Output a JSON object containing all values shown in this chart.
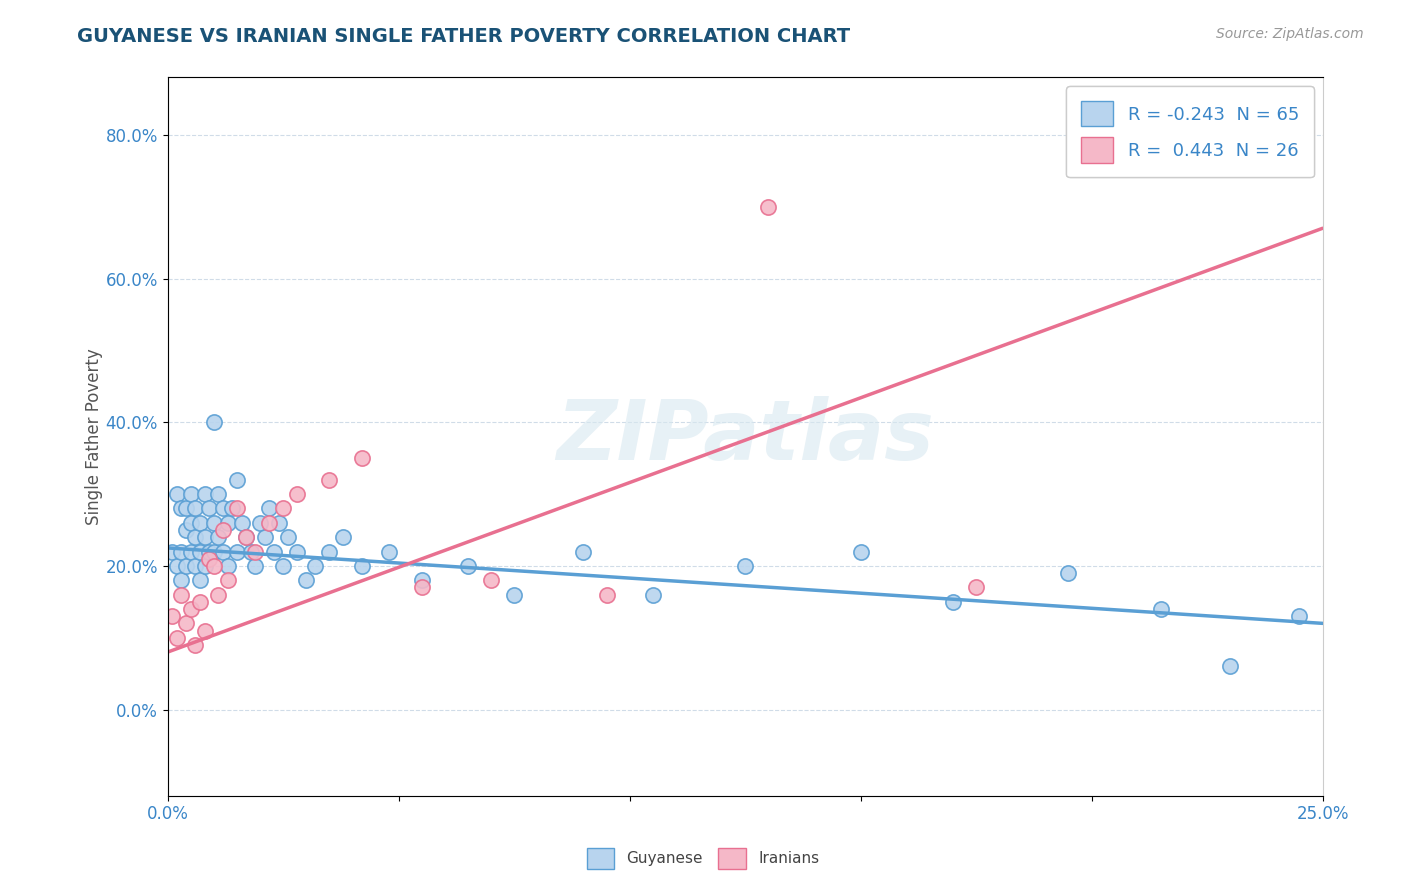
{
  "title": "GUYANESE VS IRANIAN SINGLE FATHER POVERTY CORRELATION CHART",
  "source": "Source: ZipAtlas.com",
  "ylabel": "Single Father Poverty",
  "ytick_vals": [
    0.0,
    0.2,
    0.4,
    0.6,
    0.8
  ],
  "ytick_labels": [
    "0.0%",
    "20.0%",
    "40.0%",
    "60.0%",
    "80.0%"
  ],
  "xlim": [
    0.0,
    0.25
  ],
  "ylim": [
    -0.12,
    0.88
  ],
  "watermark": "ZIPatlas",
  "legend_entries": [
    {
      "label": "R = -0.243  N = 65",
      "color": "#aec6e8"
    },
    {
      "label": "R =  0.443  N = 26",
      "color": "#f4a7b9"
    }
  ],
  "r_guyanese": -0.243,
  "n_guyanese": 65,
  "r_iranians": 0.443,
  "n_iranians": 26,
  "guyanese_color": "#b8d4ee",
  "iranians_color": "#f5b8c8",
  "guyanese_edge": "#5a9fd4",
  "iranians_edge": "#e87090",
  "title_color": "#1a5276",
  "axis_label_color": "#3a86c8",
  "grid_color": "#d0dce8",
  "background_color": "#ffffff",
  "guyanese_x": [
    0.001,
    0.002,
    0.002,
    0.003,
    0.003,
    0.003,
    0.004,
    0.004,
    0.004,
    0.005,
    0.005,
    0.005,
    0.006,
    0.006,
    0.006,
    0.007,
    0.007,
    0.007,
    0.008,
    0.008,
    0.008,
    0.009,
    0.009,
    0.01,
    0.01,
    0.01,
    0.011,
    0.011,
    0.012,
    0.012,
    0.013,
    0.013,
    0.014,
    0.015,
    0.015,
    0.016,
    0.017,
    0.018,
    0.019,
    0.02,
    0.021,
    0.022,
    0.023,
    0.024,
    0.025,
    0.026,
    0.028,
    0.03,
    0.032,
    0.035,
    0.038,
    0.042,
    0.048,
    0.055,
    0.065,
    0.075,
    0.09,
    0.105,
    0.125,
    0.15,
    0.17,
    0.195,
    0.215,
    0.23,
    0.245
  ],
  "guyanese_y": [
    0.22,
    0.3,
    0.2,
    0.28,
    0.22,
    0.18,
    0.25,
    0.2,
    0.28,
    0.26,
    0.22,
    0.3,
    0.24,
    0.28,
    0.2,
    0.26,
    0.22,
    0.18,
    0.3,
    0.24,
    0.2,
    0.28,
    0.22,
    0.4,
    0.26,
    0.22,
    0.3,
    0.24,
    0.28,
    0.22,
    0.26,
    0.2,
    0.28,
    0.32,
    0.22,
    0.26,
    0.24,
    0.22,
    0.2,
    0.26,
    0.24,
    0.28,
    0.22,
    0.26,
    0.2,
    0.24,
    0.22,
    0.18,
    0.2,
    0.22,
    0.24,
    0.2,
    0.22,
    0.18,
    0.2,
    0.16,
    0.22,
    0.16,
    0.2,
    0.22,
    0.15,
    0.19,
    0.14,
    0.06,
    0.13
  ],
  "iranians_x": [
    0.001,
    0.002,
    0.003,
    0.004,
    0.005,
    0.006,
    0.007,
    0.008,
    0.009,
    0.01,
    0.011,
    0.012,
    0.013,
    0.015,
    0.017,
    0.019,
    0.022,
    0.025,
    0.028,
    0.035,
    0.042,
    0.055,
    0.07,
    0.095,
    0.13,
    0.175
  ],
  "iranians_y": [
    0.13,
    0.1,
    0.16,
    0.12,
    0.14,
    0.09,
    0.15,
    0.11,
    0.21,
    0.2,
    0.16,
    0.25,
    0.18,
    0.28,
    0.24,
    0.22,
    0.26,
    0.28,
    0.3,
    0.32,
    0.35,
    0.17,
    0.18,
    0.16,
    0.7,
    0.17
  ]
}
